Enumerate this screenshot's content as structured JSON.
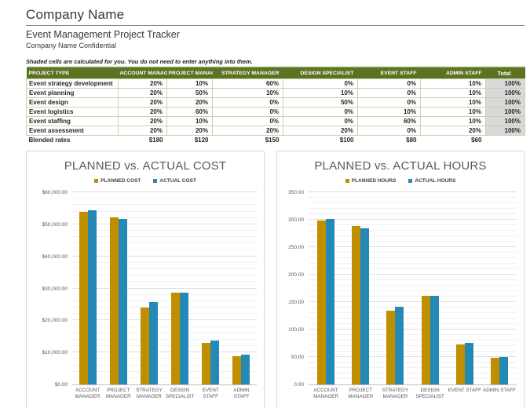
{
  "header": {
    "company": "Company Name",
    "subtitle": "Event Management Project Tracker",
    "confidential": "Company Name Confidential"
  },
  "note": "Shaded cells are calculated for you. You do not need to enter anything into them.",
  "colors": {
    "header_green": "#5b7223",
    "total_shade": "#d9d9d9",
    "series": [
      "#BF8F00",
      "#2589B5"
    ]
  },
  "allocation_table": {
    "columns": [
      "PROJECT TYPE",
      "ACCOUNT MANAGER",
      "PROJECT MANAGER",
      "STRATEGY MANAGER",
      "DESIGN SPECIALIST",
      "EVENT STAFF",
      "ADMIN STAFF",
      "Total"
    ],
    "rows": [
      {
        "label": "Event strategy development",
        "values": [
          "20%",
          "10%",
          "60%",
          "0%",
          "0%",
          "10%"
        ],
        "total": "100%"
      },
      {
        "label": "Event planning",
        "values": [
          "20%",
          "50%",
          "10%",
          "10%",
          "0%",
          "10%"
        ],
        "total": "100%"
      },
      {
        "label": "Event design",
        "values": [
          "20%",
          "20%",
          "0%",
          "50%",
          "0%",
          "10%"
        ],
        "total": "100%"
      },
      {
        "label": "Event logistics",
        "values": [
          "20%",
          "60%",
          "0%",
          "0%",
          "10%",
          "10%"
        ],
        "total": "100%"
      },
      {
        "label": "Event staffing",
        "values": [
          "20%",
          "10%",
          "0%",
          "0%",
          "60%",
          "10%"
        ],
        "total": "100%"
      },
      {
        "label": "Event assessment",
        "values": [
          "20%",
          "20%",
          "20%",
          "20%",
          "0%",
          "20%"
        ],
        "total": "100%"
      }
    ],
    "footer": {
      "label": "Blended rates",
      "values": [
        "$180",
        "$120",
        "$150",
        "$100",
        "$80",
        "$60"
      ],
      "total": ""
    }
  },
  "chart_data": [
    {
      "type": "bar",
      "title": "PLANNED vs. ACTUAL COST",
      "categories": [
        "ACCOUNT\nMANAGER",
        "PROJECT\nMANAGER",
        "STRATEGY\nMANAGER",
        "DESIGN\nSPECIALIST",
        "EVENT STAFF",
        "ADMIN\nSTAFF"
      ],
      "series": [
        {
          "name": "PLANNED COST",
          "values": [
            54000,
            52200,
            24100,
            28700,
            13100,
            8900
          ]
        },
        {
          "name": "ACTUAL COST",
          "values": [
            54400,
            51600,
            25600,
            28700,
            13600,
            9300
          ]
        }
      ],
      "ylim": [
        0,
        60000
      ],
      "ytick_major": 10000,
      "ytick_minor": 2000,
      "tick_labels": [
        "$60,000.00",
        "$50,000.00",
        "$40,000.00",
        "$30,000.00",
        "$20,000.00",
        "$10,000.00",
        "$0.00"
      ],
      "legend_position": "top",
      "grid": "on"
    },
    {
      "type": "bar",
      "title": "PLANNED vs. ACTUAL HOURS",
      "categories": [
        "ACCOUNT\nMANAGER",
        "PROJECT\nMANAGER",
        "STRATEGY\nMANAGER",
        "DESIGN\nSPECIALIST",
        "EVENT STAFF",
        "ADMIN STAFF"
      ],
      "series": [
        {
          "name": "PLANNED HOURS",
          "values": [
            299,
            288,
            134,
            161,
            73,
            48
          ]
        },
        {
          "name": "ACTUAL HOURS",
          "values": [
            301,
            285,
            142,
            161,
            76,
            50
          ]
        }
      ],
      "ylim": [
        0,
        350
      ],
      "ytick_major": 50,
      "ytick_minor": 10,
      "tick_labels": [
        "350.00",
        "300.00",
        "250.00",
        "200.00",
        "150.00",
        "100.00",
        "50.00",
        "0.00"
      ],
      "legend_position": "top",
      "grid": "on"
    }
  ]
}
